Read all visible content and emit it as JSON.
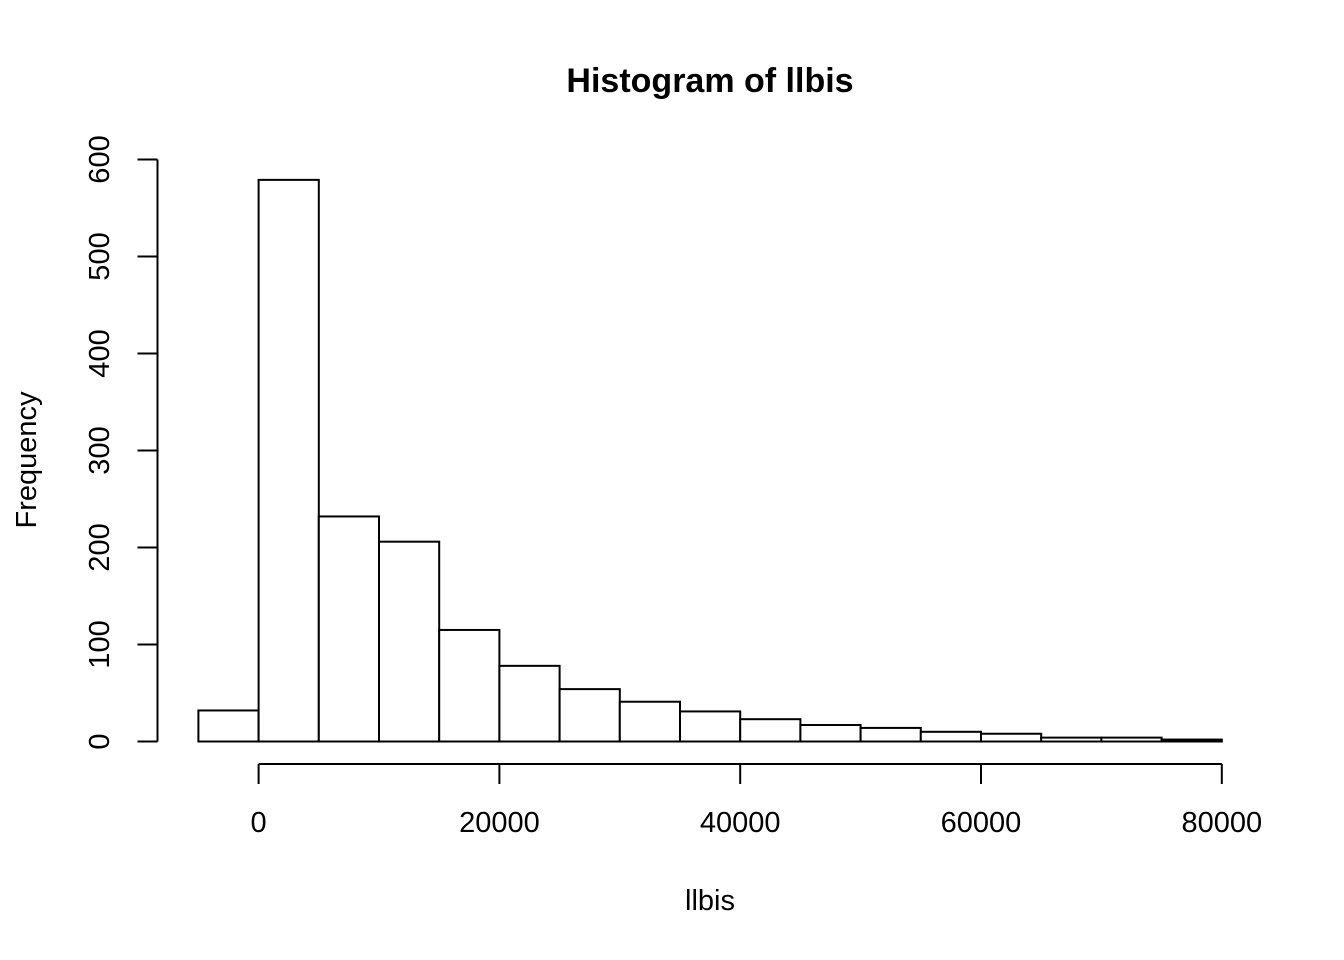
{
  "chart_data": {
    "type": "bar",
    "title": "Histogram of llbis",
    "xlabel": "llbis",
    "ylabel": "Frequency",
    "bin_width": 5000,
    "bin_starts": [
      -5000,
      0,
      5000,
      10000,
      15000,
      20000,
      25000,
      30000,
      35000,
      40000,
      45000,
      50000,
      55000,
      60000,
      65000,
      70000,
      75000
    ],
    "values": [
      32,
      579,
      232,
      206,
      115,
      78,
      54,
      41,
      31,
      23,
      17,
      14,
      10,
      8,
      4,
      4,
      2
    ],
    "xlim": [
      -5000,
      80000
    ],
    "ylim": [
      0,
      600
    ],
    "x_ticks": [
      0,
      20000,
      40000,
      60000,
      80000
    ],
    "x_tick_labels": [
      "0",
      "20000",
      "40000",
      "60000",
      "80000"
    ],
    "y_ticks": [
      0,
      100,
      200,
      300,
      400,
      500,
      600
    ],
    "y_tick_labels": [
      "0",
      "100",
      "200",
      "300",
      "400",
      "500",
      "600"
    ],
    "grid": false,
    "colors": {
      "bar_fill": "#ffffff",
      "bar_stroke": "#000000"
    }
  }
}
